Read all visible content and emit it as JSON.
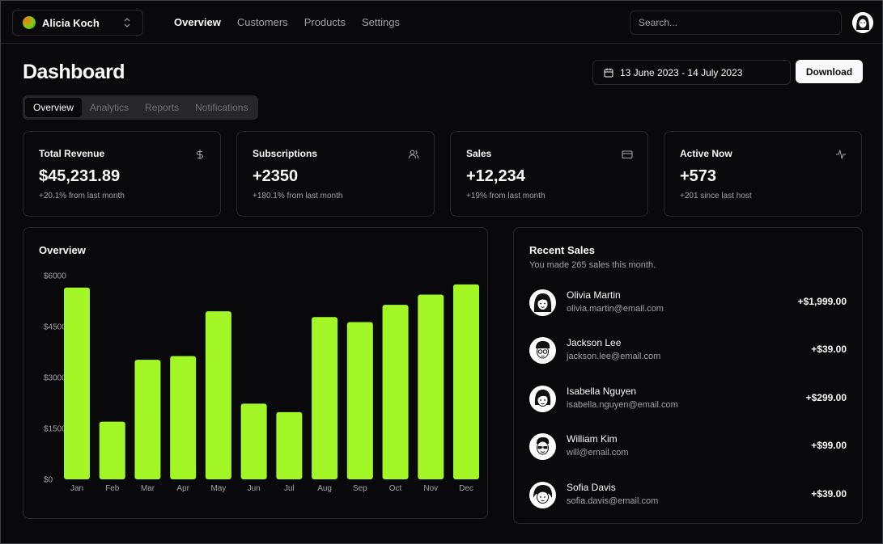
{
  "topnav": {
    "team_name": "Alicia Koch",
    "links": [
      "Overview",
      "Customers",
      "Products",
      "Settings"
    ],
    "search_placeholder": "Search..."
  },
  "header": {
    "title": "Dashboard",
    "date_range": "13 June 2023 - 14 July 2023",
    "download_label": "Download"
  },
  "tabs": [
    "Overview",
    "Analytics",
    "Reports",
    "Notifications"
  ],
  "stats": [
    {
      "title": "Total Revenue",
      "value": "$45,231.89",
      "sub": "+20.1% from last month",
      "icon": "dollar-icon"
    },
    {
      "title": "Subscriptions",
      "value": "+2350",
      "sub": "+180.1% from last month",
      "icon": "users-icon"
    },
    {
      "title": "Sales",
      "value": "+12,234",
      "sub": "+19% from last month",
      "icon": "credit-card-icon"
    },
    {
      "title": "Active Now",
      "value": "+573",
      "sub": "+201 since last host",
      "icon": "activity-icon"
    }
  ],
  "overview": {
    "heading": "Overview"
  },
  "chart_data": {
    "type": "bar",
    "title": "",
    "xlabel": "",
    "ylabel": "",
    "categories": [
      "Jan",
      "Feb",
      "Mar",
      "Apr",
      "May",
      "Jun",
      "Jul",
      "Aug",
      "Sep",
      "Oct",
      "Nov",
      "Dec"
    ],
    "values": [
      5650,
      1700,
      3520,
      3630,
      4950,
      2230,
      1980,
      4780,
      4630,
      5140,
      5440,
      5740
    ],
    "ylim": [
      0,
      6000
    ],
    "yticks": [
      "$0",
      "$1500",
      "$3000",
      "$4500",
      "$6000"
    ],
    "ytick_values": [
      0,
      1500,
      3000,
      4500,
      6000
    ],
    "grid": false,
    "bar_color": "#a3f727"
  },
  "recent_sales": {
    "heading": "Recent Sales",
    "subtitle": "You made 265 sales this month.",
    "items": [
      {
        "name": "Olivia Martin",
        "email": "olivia.martin@email.com",
        "amount": "+$1,999.00"
      },
      {
        "name": "Jackson Lee",
        "email": "jackson.lee@email.com",
        "amount": "+$39.00"
      },
      {
        "name": "Isabella Nguyen",
        "email": "isabella.nguyen@email.com",
        "amount": "+$299.00"
      },
      {
        "name": "William Kim",
        "email": "will@email.com",
        "amount": "+$99.00"
      },
      {
        "name": "Sofia Davis",
        "email": "sofia.davis@email.com",
        "amount": "+$39.00"
      }
    ]
  },
  "colors": {
    "background": "#09090b",
    "border": "#27272a",
    "accent": "#a3f727",
    "muted_text": "#a1a1aa"
  }
}
